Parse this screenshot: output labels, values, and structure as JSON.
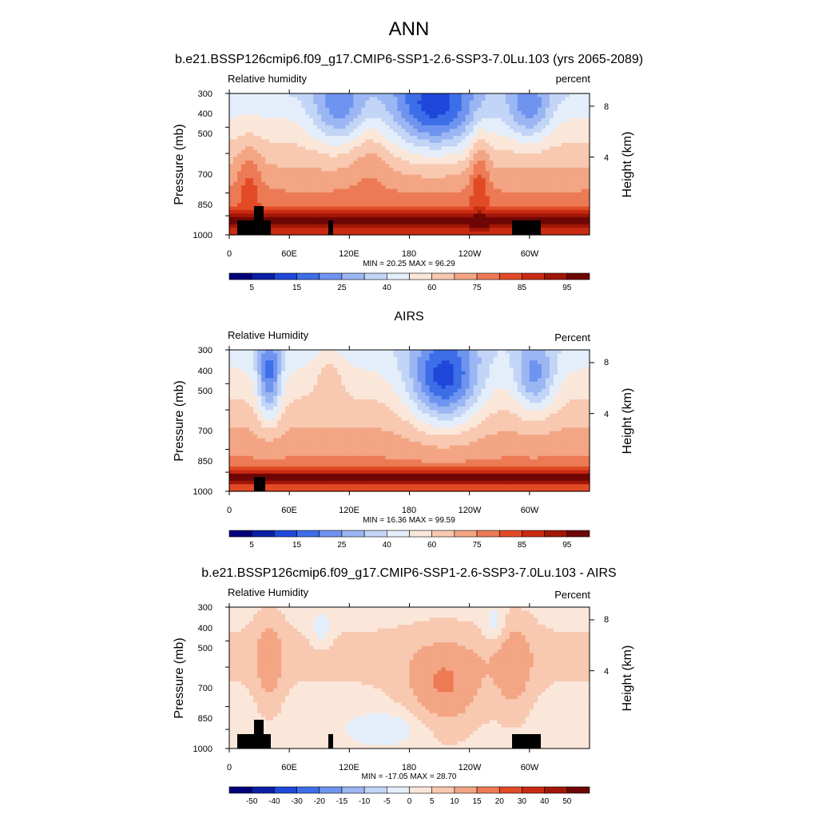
{
  "figure": {
    "title": "ANN"
  },
  "chart_data": [
    {
      "type": "heatmap",
      "title": "b.e21.BSSP126cmip6.f09_g17.CMIP6-SSP1-2.6-SSP3-7.0Lu.103 (yrs 2065-2089)",
      "left_label": "Relative humidity",
      "right_label": "percent",
      "ylabel": "Pressure (mb)",
      "ylabel_right": "Height (km)",
      "xticks": [
        "0",
        "60E",
        "120E",
        "180",
        "120W",
        "60W"
      ],
      "yticks": [
        "300",
        "400",
        "500",
        "700",
        "850",
        "1000"
      ],
      "yticks_right": [
        "8",
        "4"
      ],
      "stats": "MIN =  20.25  MAX =  96.29",
      "colorbar_labels": [
        "5",
        "15",
        "25",
        "40",
        "60",
        "75",
        "85",
        "95"
      ],
      "colorbar_colors": [
        "#00007a",
        "#0a1fa6",
        "#1f47d9",
        "#3d6ee8",
        "#6e94f0",
        "#9bb6f3",
        "#c3d5f6",
        "#e4eefb",
        "#fbe6da",
        "#f8c8b0",
        "#f3a584",
        "#ec7a55",
        "#e24a26",
        "#c92a12",
        "#a11606",
        "#6e0606"
      ],
      "field": "model",
      "ylim": [
        1000,
        300
      ]
    },
    {
      "type": "heatmap",
      "title": "AIRS",
      "left_label": "Relative Humidity",
      "right_label": "Percent",
      "ylabel": "Pressure (mb)",
      "ylabel_right": "Height (km)",
      "xticks": [
        "0",
        "60E",
        "120E",
        "180",
        "120W",
        "60W"
      ],
      "yticks": [
        "300",
        "400",
        "500",
        "700",
        "850",
        "1000"
      ],
      "yticks_right": [
        "8",
        "4"
      ],
      "stats": "MIN =  16.36  MAX =  99.59",
      "colorbar_labels": [
        "5",
        "15",
        "25",
        "40",
        "60",
        "75",
        "85",
        "95"
      ],
      "colorbar_colors": [
        "#00007a",
        "#0a1fa6",
        "#1f47d9",
        "#3d6ee8",
        "#6e94f0",
        "#9bb6f3",
        "#c3d5f6",
        "#e4eefb",
        "#fbe6da",
        "#f8c8b0",
        "#f3a584",
        "#ec7a55",
        "#e24a26",
        "#c92a12",
        "#a11606",
        "#6e0606"
      ],
      "field": "obs",
      "ylim": [
        1000,
        300
      ]
    },
    {
      "type": "heatmap",
      "title": "b.e21.BSSP126cmip6.f09_g17.CMIP6-SSP1-2.6-SSP3-7.0Lu.103 - AIRS",
      "left_label": "Relative Humidity",
      "right_label": "Percent",
      "ylabel": "Pressure (mb)",
      "ylabel_right": "Height (km)",
      "xticks": [
        "0",
        "60E",
        "120E",
        "180",
        "120W",
        "60W"
      ],
      "yticks": [
        "300",
        "400",
        "500",
        "700",
        "850",
        "1000"
      ],
      "yticks_right": [
        "8",
        "4"
      ],
      "stats": "MIN = -17.05  MAX =  28.70",
      "colorbar_labels": [
        "-50",
        "-40",
        "-30",
        "-20",
        "-15",
        "-10",
        "-5",
        "0",
        "5",
        "10",
        "15",
        "20",
        "30",
        "40",
        "50"
      ],
      "colorbar_colors": [
        "#00007a",
        "#0a1fa6",
        "#1f47d9",
        "#3d6ee8",
        "#6e94f0",
        "#9bb6f3",
        "#c3d5f6",
        "#e4eefb",
        "#fbe6da",
        "#f8c8b0",
        "#f3a584",
        "#ec7a55",
        "#e24a26",
        "#c92a12",
        "#a11606",
        "#6e0606"
      ],
      "field": "diff",
      "ylim": [
        1000,
        300
      ]
    }
  ]
}
